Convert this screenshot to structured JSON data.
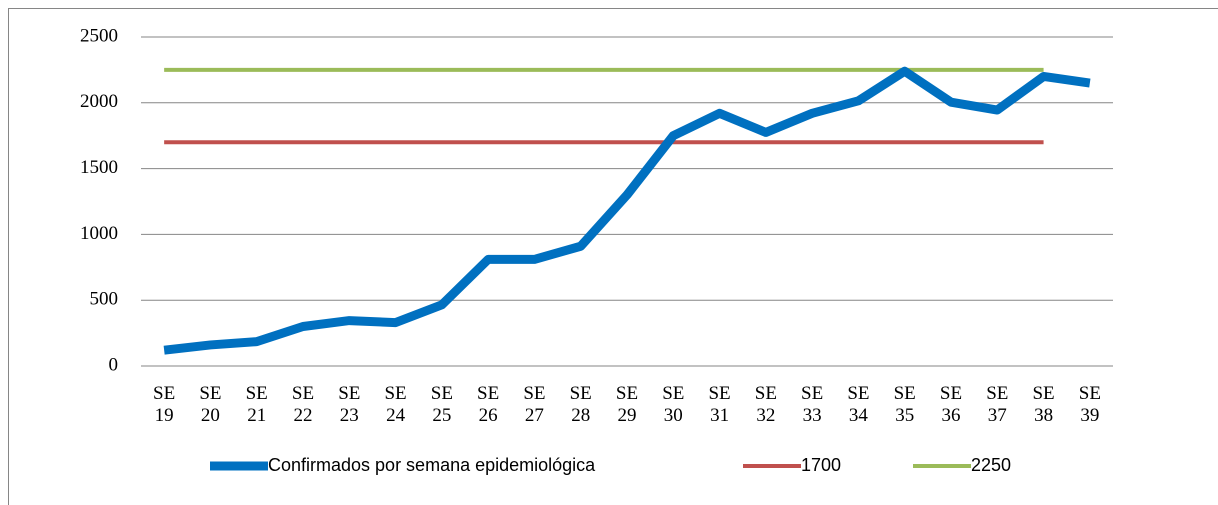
{
  "chart_data": {
    "type": "line",
    "categories": [
      "SE 19",
      "SE 20",
      "SE 21",
      "SE 22",
      "SE 23",
      "SE 24",
      "SE 25",
      "SE 26",
      "SE 27",
      "SE 28",
      "SE 29",
      "SE 30",
      "SE 31",
      "SE 32",
      "SE 33",
      "SE 34",
      "SE 35",
      "SE 36",
      "SE 37",
      "SE 38",
      "SE 39"
    ],
    "series": [
      {
        "name": "Confirmados por semana epidemiológica",
        "color": "#0070c0",
        "values": [
          120,
          160,
          185,
          300,
          345,
          330,
          465,
          810,
          810,
          910,
          1300,
          1750,
          1920,
          1775,
          1920,
          2015,
          2240,
          2005,
          1945,
          2200,
          2150
        ]
      },
      {
        "name": "1700",
        "color": "#c0504d",
        "values": [
          1700,
          1700,
          1700,
          1700,
          1700,
          1700,
          1700,
          1700,
          1700,
          1700,
          1700,
          1700,
          1700,
          1700,
          1700,
          1700,
          1700,
          1700,
          1700,
          1700,
          null
        ]
      },
      {
        "name": "2250",
        "color": "#9bbb59",
        "values": [
          2250,
          2250,
          2250,
          2250,
          2250,
          2250,
          2250,
          2250,
          2250,
          2250,
          2250,
          2250,
          2250,
          2250,
          2250,
          2250,
          2250,
          2250,
          2250,
          2250,
          null
        ]
      }
    ],
    "ylim": [
      0,
      2500
    ],
    "yticks": [
      0,
      500,
      1000,
      1500,
      2000,
      2500
    ],
    "grid": true,
    "legend": "bottom"
  }
}
